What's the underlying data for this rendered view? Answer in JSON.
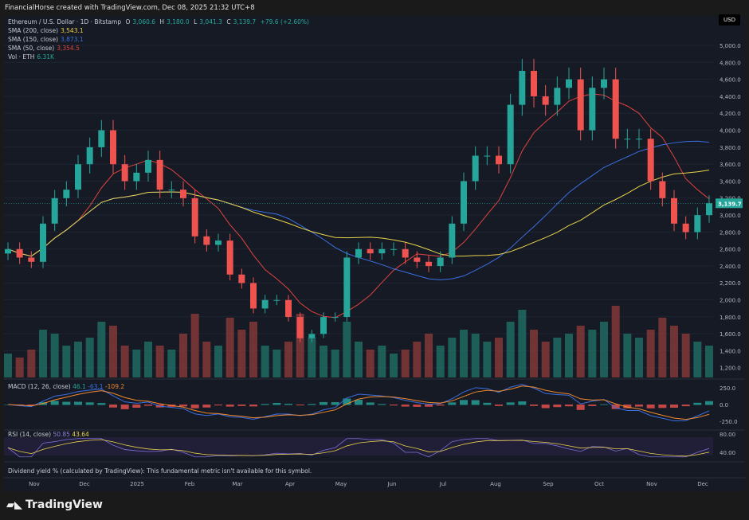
{
  "header": "FinancialHorse created with TradingView.com, Dec 08, 2025 21:32 UTC+8",
  "legend": {
    "symbol": "Ethereum / U.S. Dollar · 1D · Bitstamp",
    "o_label": "O",
    "o": "3,060.6",
    "h_label": "H",
    "h": "3,180.0",
    "l_label": "L",
    "l": "3,041.3",
    "c_label": "C",
    "c": "3,139.7",
    "chg": "+79.6 (+2.60%)",
    "sma200_label": "SMA (200, close)",
    "sma200": "3,543.1",
    "sma150_label": "SMA (150, close)",
    "sma150": "3,873.1",
    "sma50_label": "SMA (50, close)",
    "sma50": "3,354.5",
    "vol_label": "Vol · ETH",
    "vol": "6.31K"
  },
  "macd": {
    "label": "MACD (12, 26, close)",
    "hist": "46.1",
    "macd": "-63.1",
    "signal": "-109.2"
  },
  "rsi": {
    "label": "RSI (14, close)",
    "rsi": "50.85",
    "ma": "43.64"
  },
  "dividend_note": "Dividend yield % (calculated by TradingView): This fundamental metric isn't available for this symbol.",
  "currency": "USD",
  "footer": "TradingView",
  "colors": {
    "up": "#26a69a",
    "down": "#ef5350",
    "sma200": "#e8d24a",
    "sma150": "#3b6fe0",
    "sma50": "#e0433f",
    "bg": "#161a25"
  },
  "chart_data": {
    "type": "candlestick",
    "title": "Ethereum / U.S. Dollar · 1D · Bitstamp",
    "interval_note": "approximate weekly closes read from chart, Oct 2024 – Dec 2025",
    "closes": [
      2600,
      2500,
      2450,
      2900,
      3200,
      3300,
      3600,
      3800,
      4000,
      3600,
      3400,
      3500,
      3650,
      3300,
      3300,
      3200,
      2750,
      2650,
      2700,
      2300,
      2200,
      1900,
      2000,
      2000,
      1800,
      1550,
      1600,
      1800,
      1800,
      2500,
      2600,
      2550,
      2600,
      2600,
      2500,
      2450,
      2400,
      2500,
      2900,
      3400,
      3700,
      3700,
      3600,
      4300,
      4700,
      4400,
      4300,
      4500,
      4600,
      4000,
      4500,
      4600,
      3900,
      3900,
      3900,
      3400,
      3200,
      2900,
      2800,
      3000,
      3140
    ],
    "volumes": [
      30,
      25,
      35,
      60,
      55,
      40,
      45,
      50,
      70,
      65,
      40,
      35,
      45,
      40,
      35,
      55,
      80,
      45,
      40,
      75,
      60,
      70,
      40,
      35,
      45,
      80,
      50,
      40,
      35,
      70,
      45,
      35,
      40,
      30,
      35,
      45,
      55,
      40,
      50,
      60,
      55,
      45,
      50,
      70,
      85,
      60,
      45,
      50,
      55,
      65,
      60,
      70,
      90,
      55,
      50,
      60,
      75,
      65,
      55,
      45,
      40
    ],
    "sma_periods": [
      50,
      150,
      200
    ],
    "last_price": "3,139.7",
    "y_ticks": [
      "5,000.0",
      "4,800.0",
      "4,600.0",
      "4,400.0",
      "4,200.0",
      "4,000.0",
      "3,800.0",
      "3,600.0",
      "3,400.0",
      "3,200.0",
      "3,000.0",
      "2,800.0",
      "2,600.0",
      "2,400.0",
      "2,200.0",
      "2,000.0",
      "1,800.0",
      "1,600.0",
      "1,400.0",
      "1,200.0"
    ],
    "macd_ticks": [
      "250.0",
      "0.0",
      "-250.0"
    ],
    "rsi_ticks": [
      "80.00",
      "40.00"
    ],
    "x_ticks": [
      "Nov",
      "Dec",
      "2025",
      "Feb",
      "Mar",
      "Apr",
      "May",
      "Jun",
      "Jul",
      "Aug",
      "Sep",
      "Oct",
      "Nov",
      "Dec"
    ],
    "ylim": [
      1200,
      5000
    ]
  }
}
